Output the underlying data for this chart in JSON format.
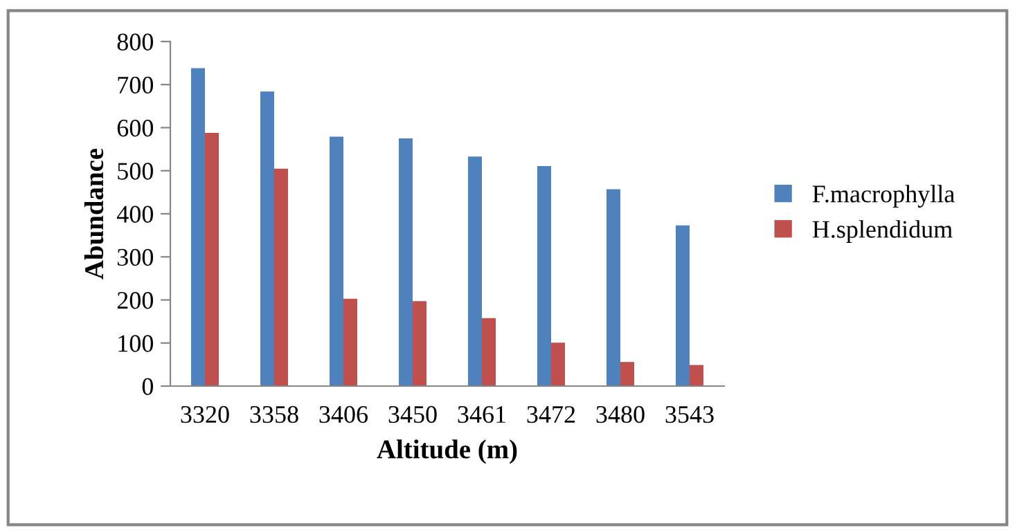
{
  "chart_data": {
    "type": "bar",
    "xlabel": "Altitude (m)",
    "ylabel": "Abundance",
    "categories": [
      "3320",
      "3358",
      "3406",
      "3450",
      "3461",
      "3472",
      "3480",
      "3543"
    ],
    "series": [
      {
        "name": "F.macrophylla",
        "color": "#4f81bd",
        "values": [
          738,
          684,
          579,
          575,
          533,
          511,
          457,
          373
        ]
      },
      {
        "name": "H.splendidum",
        "color": "#c0504d",
        "values": [
          588,
          505,
          203,
          197,
          158,
          101,
          56,
          49
        ]
      }
    ],
    "ylim": [
      0,
      800
    ],
    "yticks": [
      0,
      100,
      200,
      300,
      400,
      500,
      600,
      700,
      800
    ],
    "grid": false,
    "legend": "right"
  }
}
